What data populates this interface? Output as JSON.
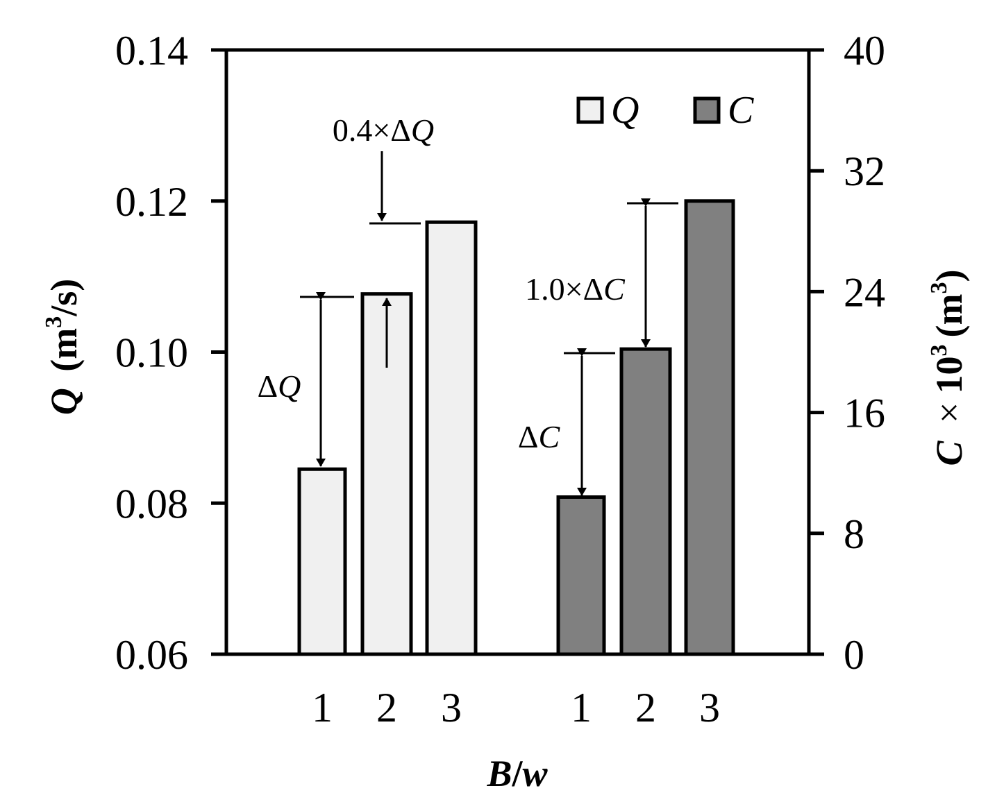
{
  "chart_data": {
    "type": "bar",
    "xlabel": "B/w",
    "left_axis": {
      "label": "Q (m3/s)",
      "ylim": [
        0.06,
        0.14
      ],
      "ticks": [
        "0.06",
        "0.08",
        "0.10",
        "0.12",
        "0.14"
      ]
    },
    "right_axis": {
      "label": "C × 103 (m3)",
      "ylim": [
        0,
        40
      ],
      "ticks": [
        "0",
        "8",
        "16",
        "24",
        "32",
        "40"
      ]
    },
    "categories": [
      "1",
      "2",
      "3"
    ],
    "series": [
      {
        "name": "Q",
        "axis": "left",
        "color": "#f0f0f0",
        "values": [
          0.0845,
          0.1077,
          0.1172
        ]
      },
      {
        "name": "C",
        "axis": "right",
        "color": "#808080",
        "values": [
          10.4,
          20.2,
          30.0
        ]
      }
    ],
    "annotations": [
      "ΔQ",
      "0.4×ΔQ",
      "ΔC",
      "1.0×ΔC"
    ],
    "legend": {
      "placement": "top-right",
      "entries": [
        "Q",
        "C"
      ]
    },
    "grid": false
  }
}
